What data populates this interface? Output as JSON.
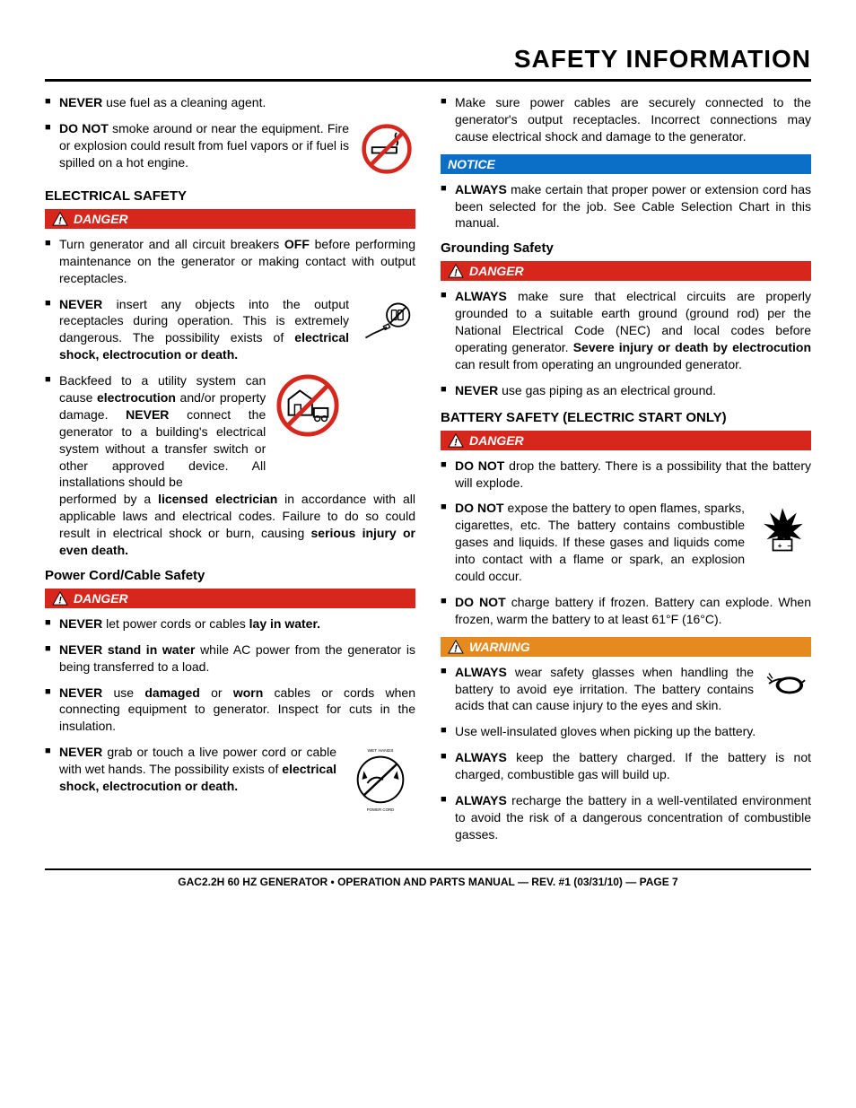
{
  "page_title": "SAFETY INFORMATION",
  "colors": {
    "danger_bg": "#d7261c",
    "warning_bg": "#e58a1f",
    "notice_bg": "#0b6fc7",
    "text": "#000000",
    "banner_text": "#ffffff"
  },
  "left": {
    "b1_html": "<b>NEVER</b> use fuel as a cleaning agent.",
    "b2_html": "<b>DO NOT</b> smoke around or near the equipment. Fire or explosion could result from fuel vapors or if fuel is spilled on a hot engine.",
    "elec_header": "ELECTRICAL SAFETY",
    "danger1_label": "DANGER",
    "b3_html": "Turn generator and all circuit breakers <b>OFF</b> before performing maintenance on the generator or making contact with output receptacles.",
    "b4_html": "<b>NEVER</b> insert any objects into the output receptacles during operation. This is extremely dangerous. The possibility exists of <b>electrical shock, electrocution or death.</b>",
    "b5_html": "Backfeed to a utility system can cause <b>electrocution</b> and/or property damage. <b>NEVER</b> connect the generator to a building's electrical system without a transfer switch or other approved device. All installations should be performed by a <b>licensed electrician</b> in accordance with all applicable laws and electrical codes. Failure to do so could result in electrical shock or burn, causing <b>serious injury or even death.</b>",
    "cord_header": "Power Cord/Cable Safety",
    "danger2_label": "DANGER",
    "b6_html": "<b>NEVER</b> let power cords or cables <b>lay in water.</b>",
    "b7_html": "<b>NEVER stand in water</b> while AC power from the generator is being transferred to a load.",
    "b8_html": "<b>NEVER</b> use <b>damaged</b> or <b>worn</b> cables or cords when connecting equipment to generator. Inspect for cuts in the insulation.",
    "b9_html": "<b>NEVER</b> grab or touch a live power cord or cable with wet hands. The possibility exists of <b>electrical shock, electrocution or death.</b>"
  },
  "right": {
    "b1_html": "Make sure power cables are securely connected to the generator's output receptacles. Incorrect connections may cause electrical shock and damage to the generator.",
    "notice_label": "NOTICE",
    "b2_html": "<b>ALWAYS</b> make certain that proper power or extension cord has been selected for the job. See Cable Selection Chart in this manual.",
    "ground_header": "Grounding Safety",
    "danger1_label": "DANGER",
    "b3_html": "<b>ALWAYS</b> make sure that electrical circuits are properly grounded to a suitable earth ground (ground rod) per the National Electrical Code (NEC) and local codes before operating generator. <b>Severe injury or death by electrocution</b> can result from operating an ungrounded generator.",
    "b4_html": "<b>NEVER</b> use gas piping as an electrical ground.",
    "batt_header": "BATTERY SAFETY (ELECTRIC START ONLY)",
    "danger2_label": "DANGER",
    "b5_html": "<b>DO NOT</b> drop the battery. There is a possibility that the battery will explode.",
    "b6_html": "<b>DO NOT</b> expose the battery to open flames, sparks, cigarettes, etc. The battery contains combustible gases and liquids. If these gases and liquids come into contact with a flame or spark, an explosion could occur.",
    "b7_html": "<b>DO NOT</b> charge battery if frozen. Battery can explode. When frozen, warm the battery to at least 61°F (16°C).",
    "warning_label": "WARNING",
    "b8_html": "<b>ALWAYS</b> wear safety glasses when handling the battery to avoid eye irritation. The battery contains acids that can cause injury to the eyes and skin.",
    "b9_html": "Use well-insulated gloves when picking up the battery.",
    "b10_html": "<b>ALWAYS</b> keep the battery charged. If the battery is not charged, combustible gas will build up.",
    "b11_html": "<b>ALWAYS</b> recharge the battery in a well-ventilated environment to avoid the risk of a dangerous concentration of combustible gasses."
  },
  "footer": "GAC2.2H 60 HZ GENERATOR • OPERATION AND PARTS MANUAL — REV. #1 (03/31/10) — PAGE 7",
  "icon_labels": {
    "wet_hands": "WET HANDS",
    "power_cord": "POWER CORD (POWER ON)"
  }
}
